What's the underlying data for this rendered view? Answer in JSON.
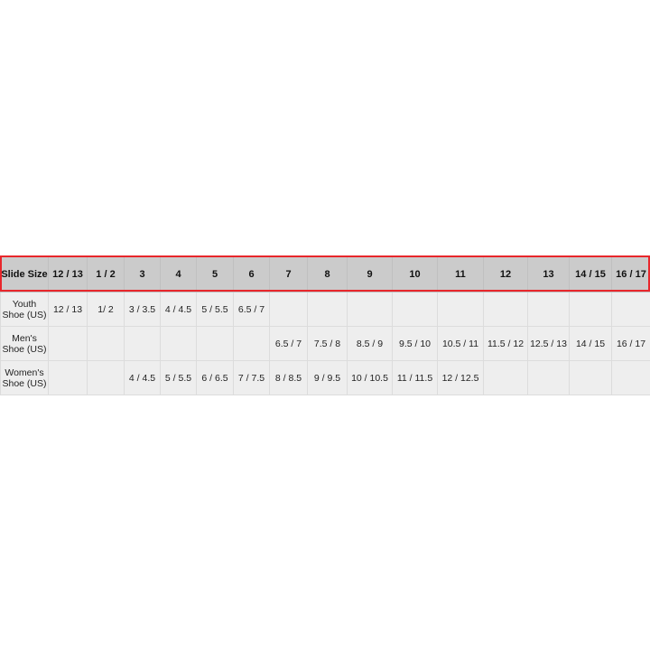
{
  "table": {
    "header_label": "Slide Size",
    "columns": [
      "12 / 13",
      "1 / 2",
      "3",
      "4",
      "5",
      "6",
      "7",
      "8",
      "9",
      "10",
      "11",
      "12",
      "13",
      "14 / 15",
      "16 / 17"
    ],
    "rows": [
      {
        "label": "Youth Shoe (US)",
        "cells": [
          "12 / 13",
          "1/ 2",
          "3 / 3.5",
          "4 / 4.5",
          "5 / 5.5",
          "6.5 / 7",
          "",
          "",
          "",
          "",
          "",
          "",
          "",
          "",
          ""
        ]
      },
      {
        "label": "Men's Shoe (US)",
        "cells": [
          "",
          "",
          "",
          "",
          "",
          "",
          "6.5 / 7",
          "7.5 / 8",
          "8.5 / 9",
          "9.5 / 10",
          "10.5 / 11",
          "11.5 / 12",
          "12.5 / 13",
          "14 / 15",
          "16 / 17"
        ]
      },
      {
        "label": "Women's Shoe (US)",
        "cells": [
          "",
          "",
          "4 / 4.5",
          "5 / 5.5",
          "6 / 6.5",
          "7 / 7.5",
          "8 / 8.5",
          "9 / 9.5",
          "10 / 10.5",
          "11 / 11.5",
          "12 / 12.5",
          "",
          "",
          "",
          ""
        ]
      }
    ],
    "header_highlight_color": "#e8262b"
  }
}
